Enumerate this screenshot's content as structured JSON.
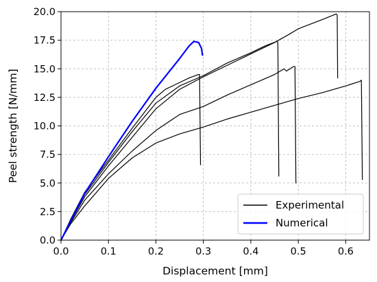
{
  "chart_data": {
    "type": "line",
    "xlabel": "Displacement [mm]",
    "ylabel": "Peel strength [N/mm]",
    "xlim": [
      0,
      0.65
    ],
    "ylim": [
      0,
      20
    ],
    "xticks": [
      0.0,
      0.1,
      0.2,
      0.3,
      0.4,
      0.5,
      0.6
    ],
    "xtick_labels": [
      "0.0",
      "0.1",
      "0.2",
      "0.3",
      "0.4",
      "0.5",
      "0.6"
    ],
    "yticks": [
      0.0,
      2.5,
      5.0,
      7.5,
      10.0,
      12.5,
      15.0,
      17.5,
      20.0
    ],
    "ytick_labels": [
      "0.0",
      "2.5",
      "5.0",
      "7.5",
      "10.0",
      "12.5",
      "15.0",
      "17.5",
      "20.0"
    ],
    "grid": true,
    "legend": {
      "position": "bottom-right",
      "entries": [
        {
          "label": "Experimental",
          "color": "#000000"
        },
        {
          "label": "Numerical",
          "color": "#0000ff"
        }
      ]
    },
    "series": [
      {
        "group": "Experimental",
        "color": "#000000",
        "width": 1.2,
        "points": [
          [
            0,
            0
          ],
          [
            0.02,
            1.8
          ],
          [
            0.05,
            4.2
          ],
          [
            0.1,
            7.0
          ],
          [
            0.15,
            9.8
          ],
          [
            0.2,
            12.5
          ],
          [
            0.22,
            13.2
          ],
          [
            0.25,
            13.8
          ],
          [
            0.27,
            14.2
          ],
          [
            0.29,
            14.5
          ],
          [
            0.292,
            14.5
          ],
          [
            0.294,
            6.6
          ]
        ]
      },
      {
        "group": "Experimental",
        "color": "#000000",
        "width": 1.2,
        "points": [
          [
            0,
            0
          ],
          [
            0.02,
            1.7
          ],
          [
            0.05,
            4.0
          ],
          [
            0.1,
            6.8
          ],
          [
            0.15,
            9.5
          ],
          [
            0.2,
            12.0
          ],
          [
            0.25,
            13.5
          ],
          [
            0.3,
            14.4
          ],
          [
            0.35,
            15.5
          ],
          [
            0.4,
            16.4
          ],
          [
            0.43,
            17.0
          ],
          [
            0.455,
            17.4
          ],
          [
            0.457,
            17.3
          ],
          [
            0.459,
            5.6
          ]
        ]
      },
      {
        "group": "Experimental",
        "color": "#000000",
        "width": 1.2,
        "points": [
          [
            0,
            0
          ],
          [
            0.02,
            1.6
          ],
          [
            0.05,
            3.8
          ],
          [
            0.1,
            6.5
          ],
          [
            0.15,
            9.0
          ],
          [
            0.2,
            11.5
          ],
          [
            0.25,
            13.2
          ],
          [
            0.3,
            14.3
          ],
          [
            0.35,
            15.3
          ],
          [
            0.4,
            16.3
          ],
          [
            0.45,
            17.3
          ],
          [
            0.48,
            18.0
          ],
          [
            0.5,
            18.5
          ],
          [
            0.55,
            19.3
          ],
          [
            0.58,
            19.8
          ],
          [
            0.582,
            19.7
          ],
          [
            0.583,
            14.2
          ]
        ]
      },
      {
        "group": "Experimental",
        "color": "#000000",
        "width": 1.2,
        "points": [
          [
            0,
            0
          ],
          [
            0.02,
            1.5
          ],
          [
            0.05,
            3.5
          ],
          [
            0.1,
            5.8
          ],
          [
            0.15,
            7.8
          ],
          [
            0.2,
            9.6
          ],
          [
            0.25,
            11.0
          ],
          [
            0.3,
            11.7
          ],
          [
            0.35,
            12.7
          ],
          [
            0.4,
            13.6
          ],
          [
            0.45,
            14.5
          ],
          [
            0.47,
            15.0
          ],
          [
            0.475,
            14.8
          ],
          [
            0.49,
            15.2
          ],
          [
            0.493,
            15.2
          ],
          [
            0.495,
            5.0
          ]
        ]
      },
      {
        "group": "Experimental",
        "color": "#000000",
        "width": 1.2,
        "points": [
          [
            0,
            0
          ],
          [
            0.02,
            1.4
          ],
          [
            0.05,
            3.0
          ],
          [
            0.1,
            5.4
          ],
          [
            0.15,
            7.2
          ],
          [
            0.2,
            8.5
          ],
          [
            0.25,
            9.3
          ],
          [
            0.3,
            9.9
          ],
          [
            0.35,
            10.6
          ],
          [
            0.4,
            11.2
          ],
          [
            0.45,
            11.8
          ],
          [
            0.5,
            12.4
          ],
          [
            0.55,
            12.9
          ],
          [
            0.6,
            13.5
          ],
          [
            0.63,
            13.9
          ],
          [
            0.633,
            14.0
          ],
          [
            0.635,
            5.3
          ]
        ]
      },
      {
        "group": "Numerical",
        "color": "#0000ff",
        "width": 2.2,
        "points": [
          [
            0,
            0
          ],
          [
            0.05,
            4.1
          ],
          [
            0.1,
            7.3
          ],
          [
            0.15,
            10.4
          ],
          [
            0.2,
            13.3
          ],
          [
            0.25,
            15.9
          ],
          [
            0.27,
            17.0
          ],
          [
            0.28,
            17.4
          ],
          [
            0.29,
            17.3
          ],
          [
            0.296,
            16.8
          ],
          [
            0.298,
            16.2
          ]
        ]
      }
    ]
  }
}
